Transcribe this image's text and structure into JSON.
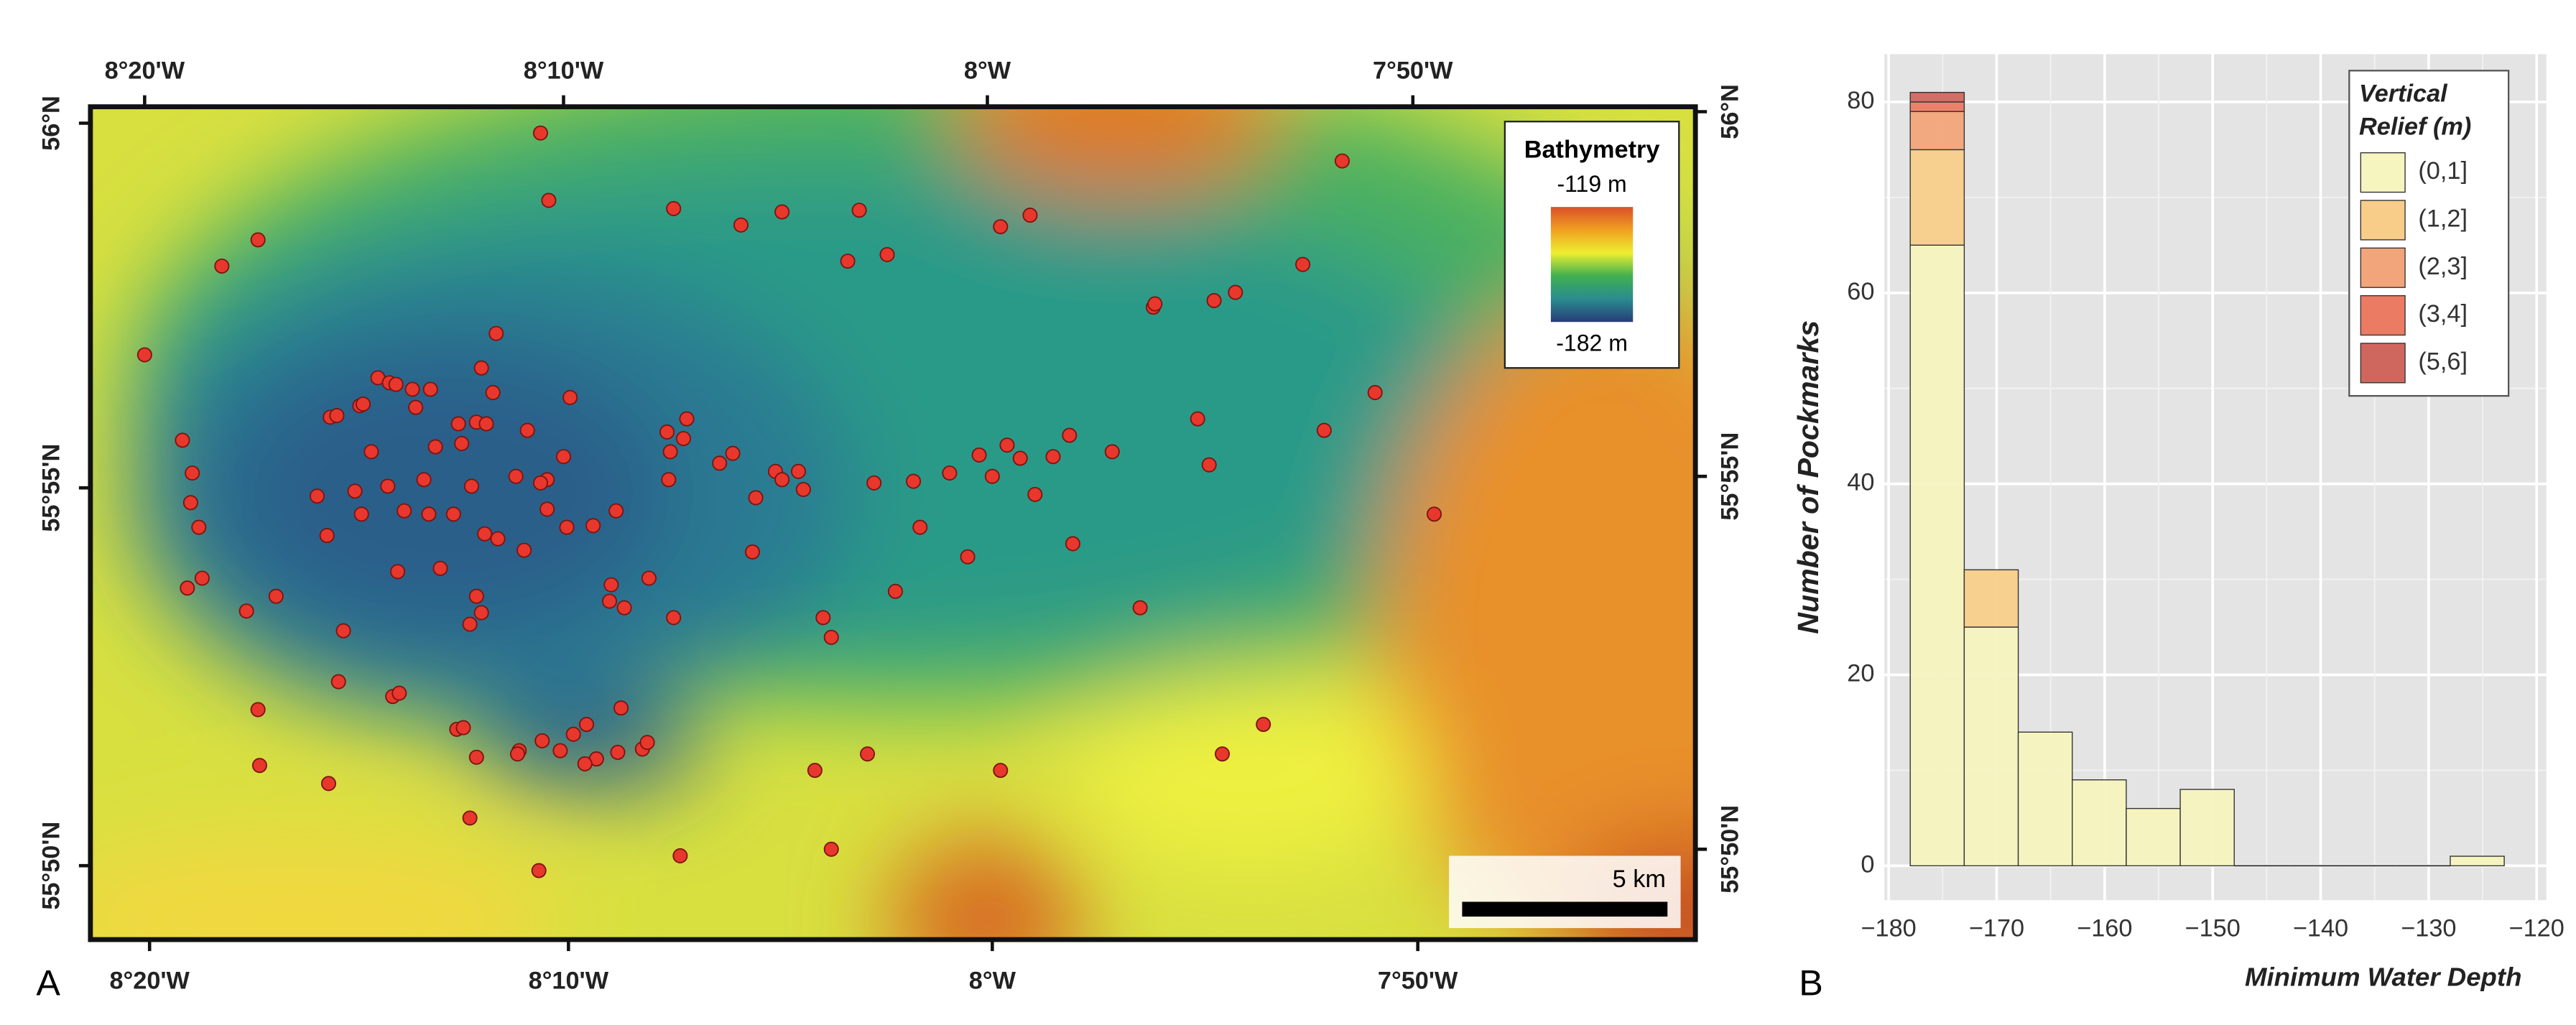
{
  "panel_labels": [
    "A",
    "B"
  ],
  "map": {
    "lon_labels": [
      "8°20'W",
      "8°10'W",
      "8°W",
      "7°50'W"
    ],
    "lat_labels": [
      "56°N",
      "55°55'N",
      "55°50'N"
    ],
    "legend": {
      "title": "Bathymetry",
      "max_label": "-119 m",
      "min_label": "-182 m"
    },
    "scale_label": "5 km"
  },
  "chart_data": {
    "type": "histogram",
    "x_label": "Minimum Water Depth",
    "y_label": "Number of Pockmarks",
    "legend_title": [
      "Vertical",
      "Relief (m)"
    ],
    "bins": [
      -178,
      -173,
      -168,
      -163,
      -158,
      -153,
      -148,
      -143,
      -138,
      -133,
      -128,
      -123
    ],
    "series": [
      {
        "name": "(0,1]",
        "color": "#f6f4bf",
        "values": [
          65,
          25,
          14,
          9,
          6,
          8,
          0,
          0,
          0,
          0,
          1
        ]
      },
      {
        "name": "(1,2]",
        "color": "#f8cd8a",
        "values": [
          10,
          6,
          0,
          0,
          0,
          0,
          0,
          0,
          0,
          0,
          0
        ]
      },
      {
        "name": "(2,3]",
        "color": "#f2a57a",
        "values": [
          4,
          0,
          0,
          0,
          0,
          0,
          0,
          0,
          0,
          0,
          0
        ]
      },
      {
        "name": "(3,4]",
        "color": "#ec7b64",
        "values": [
          1,
          0,
          0,
          0,
          0,
          0,
          0,
          0,
          0,
          0,
          0
        ]
      },
      {
        "name": "(5,6]",
        "color": "#d0675e",
        "values": [
          1,
          0,
          0,
          0,
          0,
          0,
          0,
          0,
          0,
          0,
          0
        ]
      }
    ],
    "xlim": [
      -180.4,
      -119.1
    ],
    "ylim": [
      -3.6,
      85
    ],
    "xticks": [
      {
        "value": -180,
        "label": "−180"
      },
      {
        "value": -170,
        "label": "−170"
      },
      {
        "value": -160,
        "label": "−160"
      },
      {
        "value": -150,
        "label": "−150"
      },
      {
        "value": -140,
        "label": "−140"
      },
      {
        "value": -130,
        "label": "−130"
      },
      {
        "value": -120,
        "label": "−120"
      }
    ],
    "yticks": [
      0,
      20,
      40,
      60,
      80
    ],
    "grid": true
  }
}
